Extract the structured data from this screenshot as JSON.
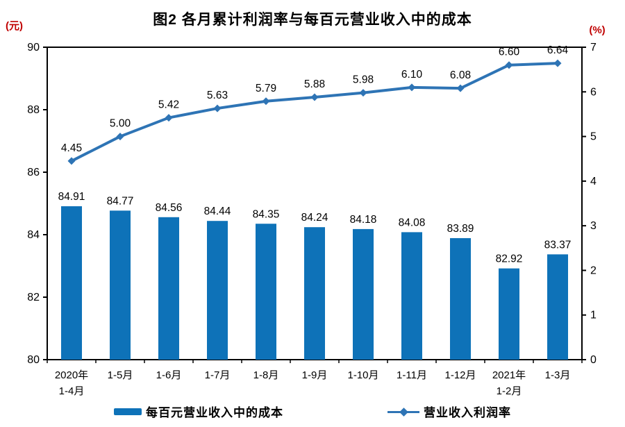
{
  "colors": {
    "bar": "#0E72B8",
    "line": "#2E74B5",
    "axis": "#000000",
    "unit_label": "#C00000",
    "value_label": "#000000"
  },
  "chart_data": {
    "type": "bar+line",
    "title": "图2 各月累计利润率与每百元营业收入中的成本",
    "categories": [
      [
        "2020年",
        "1-4月"
      ],
      [
        "1-5月"
      ],
      [
        "1-6月"
      ],
      [
        "1-7月"
      ],
      [
        "1-8月"
      ],
      [
        "1-9月"
      ],
      [
        "1-10月"
      ],
      [
        "1-11月"
      ],
      [
        "1-12月"
      ],
      [
        "2021年",
        "1-2月"
      ],
      [
        "1-3月"
      ]
    ],
    "series": [
      {
        "name": "每百元营业收入中的成本",
        "type": "bar",
        "axis": "left",
        "values": [
          84.91,
          84.77,
          84.56,
          84.44,
          84.35,
          84.24,
          84.18,
          84.08,
          83.89,
          82.92,
          83.37
        ]
      },
      {
        "name": "营业收入利润率",
        "type": "line",
        "axis": "right",
        "values": [
          4.45,
          5.0,
          5.42,
          5.63,
          5.79,
          5.88,
          5.98,
          6.1,
          6.08,
          6.6,
          6.64
        ]
      }
    ],
    "left_axis": {
      "unit": "(元)",
      "min": 80,
      "max": 90,
      "step": 2,
      "ticks": [
        "80",
        "82",
        "84",
        "86",
        "88",
        "90"
      ]
    },
    "right_axis": {
      "unit": "(%)",
      "min": 0,
      "max": 7,
      "step": 1,
      "ticks": [
        "0",
        "1",
        "2",
        "3",
        "4",
        "5",
        "6",
        "7"
      ]
    },
    "value_label_decimals": 2,
    "grid": false,
    "legend_position": "bottom"
  }
}
